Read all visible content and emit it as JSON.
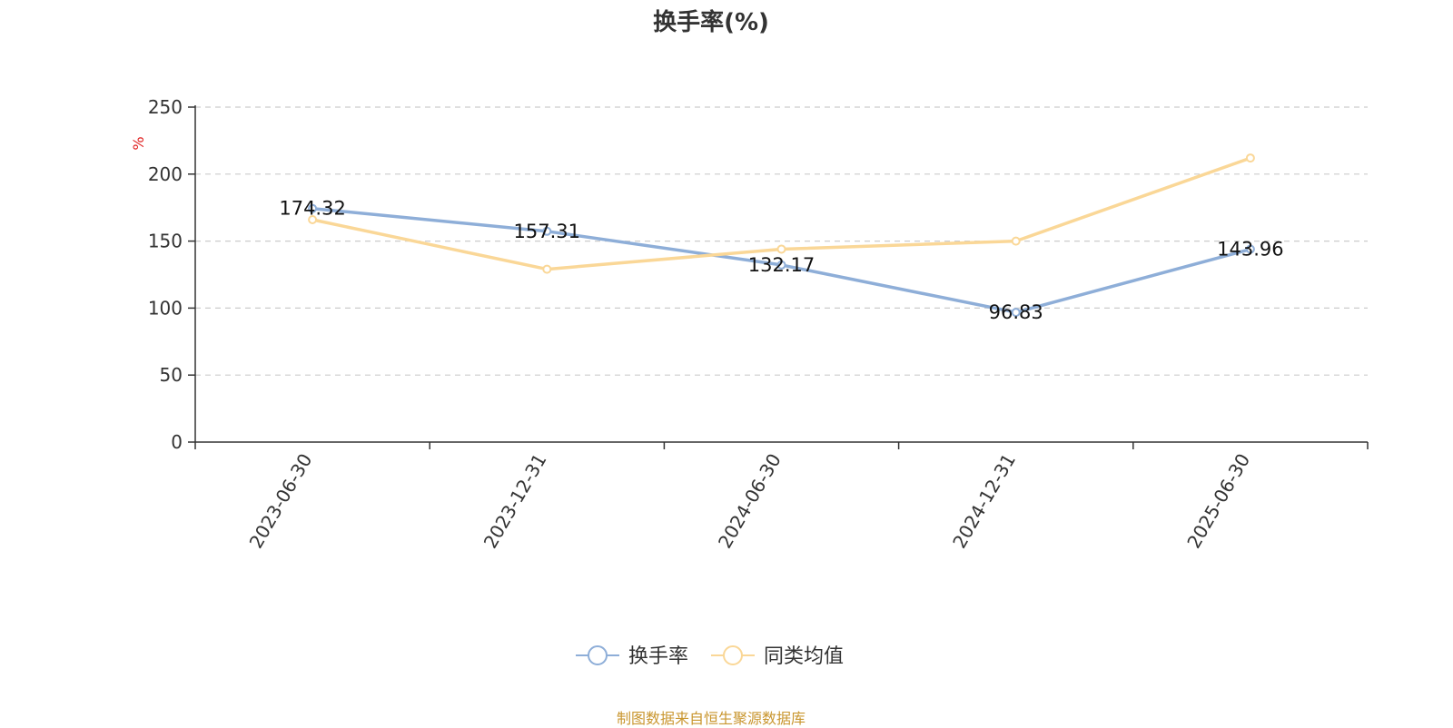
{
  "chart_title": "换手率(%)",
  "footer": "制图数据来自恒生聚源数据库",
  "chart_data": {
    "type": "line",
    "title": "换手率(%)",
    "ylabel": "%",
    "xlabel": "",
    "categories": [
      "2023-06-30",
      "2023-12-31",
      "2024-06-30",
      "2024-12-31",
      "2025-06-30"
    ],
    "ylim": [
      0,
      250
    ],
    "yticks": [
      0,
      50,
      100,
      150,
      200,
      250
    ],
    "grid": true,
    "legend_position": "bottom",
    "series": [
      {
        "name": "换手率",
        "color": "#8eaed8",
        "values": [
          174.32,
          157.31,
          132.17,
          96.83,
          143.96
        ],
        "show_labels": true,
        "labels": [
          "174.32",
          "157.31",
          "132.17",
          "96.83",
          "143.96"
        ]
      },
      {
        "name": "同类均值",
        "color": "#fad797",
        "values": [
          166,
          129,
          144,
          150,
          212
        ],
        "show_labels": false
      }
    ]
  },
  "colors": {
    "axis": "#333333",
    "grid": "#cccccc",
    "unit_label": "#e02020",
    "footer": "#c9962f"
  }
}
